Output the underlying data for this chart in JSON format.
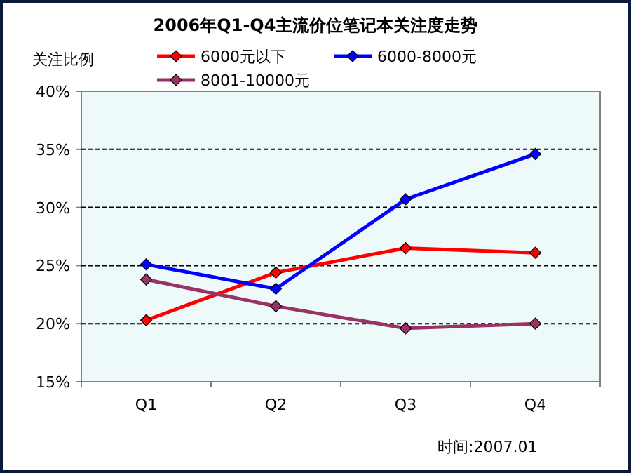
{
  "chart_data": {
    "type": "line",
    "title": "2006年Q1-Q4主流价位笔记本关注度走势",
    "ylabel": "关注比例",
    "categories": [
      "Q1",
      "Q2",
      "Q3",
      "Q4"
    ],
    "series": [
      {
        "name": "6000元以下",
        "color": "#ff0000",
        "values": [
          20.3,
          24.4,
          26.5,
          26.1
        ]
      },
      {
        "name": "6000-8000元",
        "color": "#0000ff",
        "values": [
          25.1,
          23.0,
          30.7,
          34.6
        ]
      },
      {
        "name": "8001-10000元",
        "color": "#993366",
        "values": [
          23.8,
          21.5,
          19.6,
          20.0
        ]
      }
    ],
    "ylim": [
      15,
      40
    ],
    "yticks": [
      {
        "value": 15,
        "label": "15%"
      },
      {
        "value": 20,
        "label": "20%"
      },
      {
        "value": 25,
        "label": "25%"
      },
      {
        "value": 30,
        "label": "30%"
      },
      {
        "value": 35,
        "label": "35%"
      },
      {
        "value": 40,
        "label": "40%"
      }
    ],
    "grid": "y",
    "legend": "top",
    "marker": "diamond",
    "line_style": "solid",
    "annotations": [
      "时间:2007.01"
    ]
  }
}
